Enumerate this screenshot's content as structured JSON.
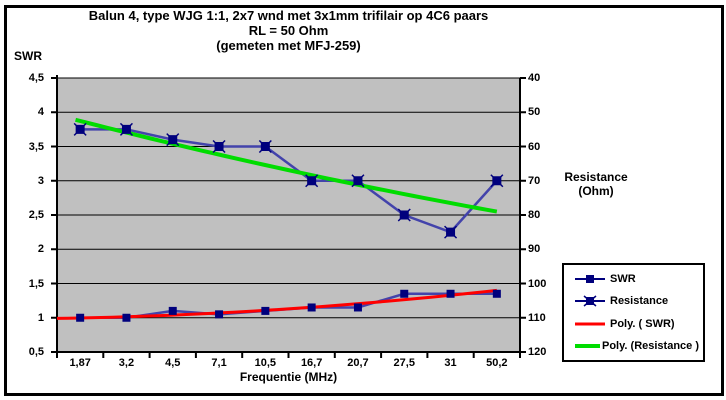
{
  "title": {
    "line1": "Balun 4, type WJG 1:1, 2x7 wnd met 3x1mm trifilair op 4C6 paars",
    "line2": "RL = 50 Ohm",
    "line3": "(gemeten met MFJ-259)"
  },
  "left_axis": {
    "label": "SWR",
    "tick_labels": [
      "4,5",
      "4",
      "3,5",
      "3",
      "2,5",
      "2",
      "1,5",
      "1",
      "0,5"
    ]
  },
  "right_axis": {
    "label_line1": "Resistance",
    "label_line2": "(Ohm)",
    "tick_labels": [
      "40",
      "50",
      "60",
      "70",
      "80",
      "90",
      "100",
      "110",
      "120"
    ]
  },
  "x_axis": {
    "label": "Frequentie (MHz)",
    "tick_labels": [
      "1,87",
      "3,2",
      "4,5",
      "7,1",
      "10,5",
      "16,7",
      "20,7",
      "27,5",
      "31",
      "50,2"
    ]
  },
  "legend": {
    "items": [
      {
        "label": "SWR",
        "swatch": "line-square",
        "color": "#00007d"
      },
      {
        "label": "Resistance",
        "swatch": "line-square-x",
        "color": "#00007d"
      },
      {
        "label": "Poly. ( SWR)",
        "swatch": "line",
        "color": "#ff0000"
      },
      {
        "label": "Poly. (Resistance )",
        "swatch": "line",
        "color": "#00dc00"
      }
    ]
  },
  "colors": {
    "plot_bg": "#c0c0c0",
    "gridline": "#000000",
    "axis": "#000000",
    "series_line": "#4343ab",
    "marker": "#00007d",
    "swr_poly": "#ff0000",
    "resistance_poly": "#00dc00"
  },
  "chart_data": {
    "type": "line",
    "title": "Balun 4, type WJG 1:1, 2x7 wnd met 3x1mm trifilair op 4C6 paars  RL = 50 Ohm  (gemeten met MFJ-259)",
    "xlabel": "Frequentie (MHz)",
    "categories": [
      "1,87",
      "3,2",
      "4,5",
      "7,1",
      "10,5",
      "16,7",
      "20,7",
      "27,5",
      "31",
      "50,2"
    ],
    "x_values_mhz": [
      1.87,
      3.2,
      4.5,
      7.1,
      10.5,
      16.7,
      20.7,
      27.5,
      31,
      50.2
    ],
    "left_axis": {
      "title": "SWR",
      "min": 0.5,
      "max": 4.5,
      "step": 0.5
    },
    "right_axis": {
      "title": "Resistance (Ohm)",
      "min": 40,
      "max": 120,
      "step": 10,
      "direction": "inverted"
    },
    "grid": "horizontal-major",
    "legend_position": "bottom-right-inside",
    "series": [
      {
        "name": "SWR",
        "axis": "left",
        "marker": "square",
        "values": [
          1.0,
          1.0,
          1.1,
          1.05,
          1.1,
          1.15,
          1.15,
          1.35,
          1.35,
          1.35
        ]
      },
      {
        "name": "Resistance",
        "axis": "right",
        "marker": "square-x",
        "values": [
          55,
          55,
          58,
          60,
          60,
          70,
          70,
          80,
          85,
          70
        ]
      },
      {
        "name": "Poly. ( SWR)",
        "axis": "left",
        "kind": "poly-trendline",
        "samples_index_value": [
          [
            -0.5,
            0.99
          ],
          [
            4.5,
            1.13
          ],
          [
            9,
            1.4
          ]
        ]
      },
      {
        "name": "Poly. (Resistance )",
        "axis": "right",
        "kind": "poly-trendline",
        "samples_index_value": [
          [
            -0.1,
            52.2
          ],
          [
            4.5,
            66.9
          ],
          [
            9,
            79.0
          ]
        ]
      }
    ]
  }
}
